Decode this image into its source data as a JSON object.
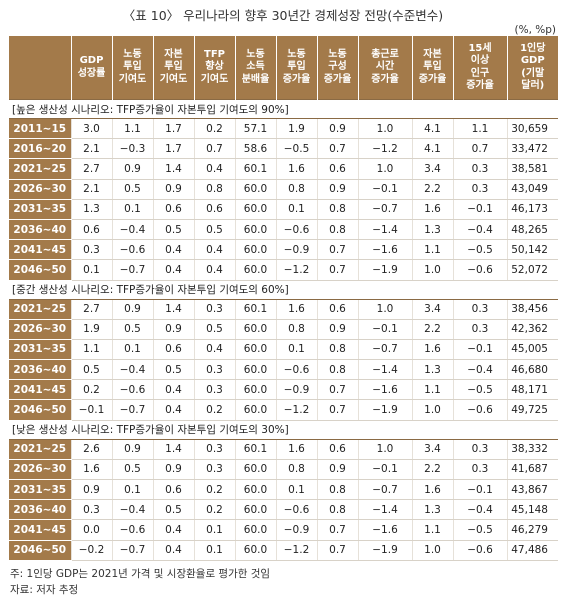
{
  "title": "〈표 10〉 우리나라의 향후 30년간 경제성장 전망(수준변수)",
  "unit": "(%, %p)",
  "headers": [
    "",
    "GDP\n성장률",
    "노동\n투입\n기여도",
    "자본\n투입\n기여도",
    "TFP\n향상\n기여도",
    "노동\n소득\n분배율",
    "노동\n투입\n증가율",
    "노동\n구성\n증가율",
    "총근로\n시간\n증가율",
    "자본\n투입\n증가율",
    "15세\n이상\n인구\n증가율",
    "1인당\nGDP\n(기말\n달러)"
  ],
  "sections": [
    {
      "label": "[높은 생산성 시나리오: TFP증가율이 자본투입 기여도의 90%]",
      "rows": [
        {
          "period": "2011∼15",
          "values": [
            "3.0",
            "1.1",
            "1.7",
            "0.2",
            "57.1",
            "1.9",
            "0.9",
            "1.0",
            "4.1",
            "1.1",
            "30,659"
          ]
        },
        {
          "period": "2016∼20",
          "values": [
            "2.1",
            "−0.3",
            "1.7",
            "0.7",
            "58.6",
            "−0.5",
            "0.7",
            "−1.2",
            "4.1",
            "0.7",
            "33,472"
          ]
        },
        {
          "period": "2021∼25",
          "values": [
            "2.7",
            "0.9",
            "1.4",
            "0.4",
            "60.1",
            "1.6",
            "0.6",
            "1.0",
            "3.4",
            "0.3",
            "38,581"
          ]
        },
        {
          "period": "2026∼30",
          "values": [
            "2.1",
            "0.5",
            "0.9",
            "0.8",
            "60.0",
            "0.8",
            "0.9",
            "−0.1",
            "2.2",
            "0.3",
            "43,049"
          ]
        },
        {
          "period": "2031∼35",
          "values": [
            "1.3",
            "0.1",
            "0.6",
            "0.6",
            "60.0",
            "0.1",
            "0.8",
            "−0.7",
            "1.6",
            "−0.1",
            "46,173"
          ]
        },
        {
          "period": "2036∼40",
          "values": [
            "0.6",
            "−0.4",
            "0.5",
            "0.5",
            "60.0",
            "−0.6",
            "0.8",
            "−1.4",
            "1.3",
            "−0.4",
            "48,265"
          ]
        },
        {
          "period": "2041∼45",
          "values": [
            "0.3",
            "−0.6",
            "0.4",
            "0.4",
            "60.0",
            "−0.9",
            "0.7",
            "−1.6",
            "1.1",
            "−0.5",
            "50,142"
          ]
        },
        {
          "period": "2046∼50",
          "values": [
            "0.1",
            "−0.7",
            "0.4",
            "0.4",
            "60.0",
            "−1.2",
            "0.7",
            "−1.9",
            "1.0",
            "−0.6",
            "52,072"
          ]
        }
      ]
    },
    {
      "label": "[중간 생산성 시나리오: TFP증가율이 자본투입 기여도의 60%]",
      "rows": [
        {
          "period": "2021∼25",
          "values": [
            "2.7",
            "0.9",
            "1.4",
            "0.3",
            "60.1",
            "1.6",
            "0.6",
            "1.0",
            "3.4",
            "0.3",
            "38,456"
          ]
        },
        {
          "period": "2026∼30",
          "values": [
            "1.9",
            "0.5",
            "0.9",
            "0.5",
            "60.0",
            "0.8",
            "0.9",
            "−0.1",
            "2.2",
            "0.3",
            "42,362"
          ]
        },
        {
          "period": "2031∼35",
          "values": [
            "1.1",
            "0.1",
            "0.6",
            "0.4",
            "60.0",
            "0.1",
            "0.8",
            "−0.7",
            "1.6",
            "−0.1",
            "45,005"
          ]
        },
        {
          "period": "2036∼40",
          "values": [
            "0.5",
            "−0.4",
            "0.5",
            "0.3",
            "60.0",
            "−0.6",
            "0.8",
            "−1.4",
            "1.3",
            "−0.4",
            "46,680"
          ]
        },
        {
          "period": "2041∼45",
          "values": [
            "0.2",
            "−0.6",
            "0.4",
            "0.3",
            "60.0",
            "−0.9",
            "0.7",
            "−1.6",
            "1.1",
            "−0.5",
            "48,171"
          ]
        },
        {
          "period": "2046∼50",
          "values": [
            "−0.1",
            "−0.7",
            "0.4",
            "0.2",
            "60.0",
            "−1.2",
            "0.7",
            "−1.9",
            "1.0",
            "−0.6",
            "49,725"
          ]
        }
      ]
    },
    {
      "label": "[낮은 생산성 시나리오: TFP증가율이 자본투입 기여도의 30%]",
      "rows": [
        {
          "period": "2021∼25",
          "values": [
            "2.6",
            "0.9",
            "1.4",
            "0.3",
            "60.1",
            "1.6",
            "0.6",
            "1.0",
            "3.4",
            "0.3",
            "38,332"
          ]
        },
        {
          "period": "2026∼30",
          "values": [
            "1.6",
            "0.5",
            "0.9",
            "0.3",
            "60.0",
            "0.8",
            "0.9",
            "−0.1",
            "2.2",
            "0.3",
            "41,687"
          ]
        },
        {
          "period": "2031∼35",
          "values": [
            "0.9",
            "0.1",
            "0.6",
            "0.2",
            "60.0",
            "0.1",
            "0.8",
            "−0.7",
            "1.6",
            "−0.1",
            "43,867"
          ]
        },
        {
          "period": "2036∼40",
          "values": [
            "0.3",
            "−0.4",
            "0.5",
            "0.2",
            "60.0",
            "−0.6",
            "0.8",
            "−1.4",
            "1.3",
            "−0.4",
            "45,148"
          ]
        },
        {
          "period": "2041∼45",
          "values": [
            "0.0",
            "−0.6",
            "0.4",
            "0.1",
            "60.0",
            "−0.9",
            "0.7",
            "−1.6",
            "1.1",
            "−0.5",
            "46,279"
          ]
        },
        {
          "period": "2046∼50",
          "values": [
            "−0.2",
            "−0.7",
            "0.4",
            "0.1",
            "60.0",
            "−1.2",
            "0.7",
            "−1.9",
            "1.0",
            "−0.6",
            "47,486"
          ]
        }
      ]
    }
  ],
  "note": "주: 1인당 GDP는 2021년 가격 및 시장환율로 평가한 것임",
  "source": "자료: 저자 추정",
  "colors": {
    "header_bg": "#a37a4a",
    "header_text": "#ffffff"
  }
}
